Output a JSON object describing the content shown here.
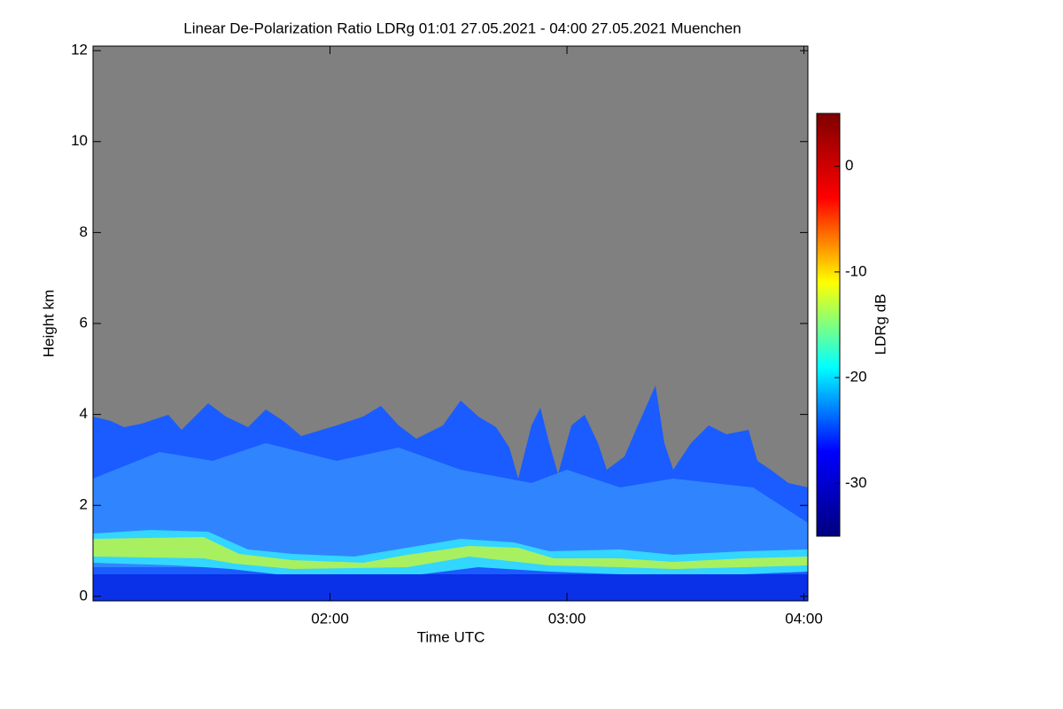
{
  "chart_data": {
    "type": "heatmap",
    "title": "Linear De-Polarization Ratio LDRg   01:01 27.05.2021 - 04:00 27.05.2021 Muenchen",
    "xlabel": "Time UTC",
    "ylabel": "Height km",
    "xlim": [
      60,
      241
    ],
    "xticks": [
      {
        "value": 120,
        "label": "02:00"
      },
      {
        "value": 180,
        "label": "03:00"
      },
      {
        "value": 240,
        "label": "04:00"
      }
    ],
    "ylim": [
      -0.1,
      12.1
    ],
    "yticks": [
      0,
      2,
      4,
      6,
      8,
      10,
      12
    ],
    "background_color": "#808080",
    "colorbar": {
      "label": "LDRg dB",
      "clim": [
        -35,
        5
      ],
      "ticks": [
        0,
        -10,
        -20,
        -30
      ],
      "colors": [
        "#00007f",
        "#0000ff",
        "#00ffff",
        "#ffff00",
        "#ff0000",
        "#7f0000"
      ]
    }
  }
}
